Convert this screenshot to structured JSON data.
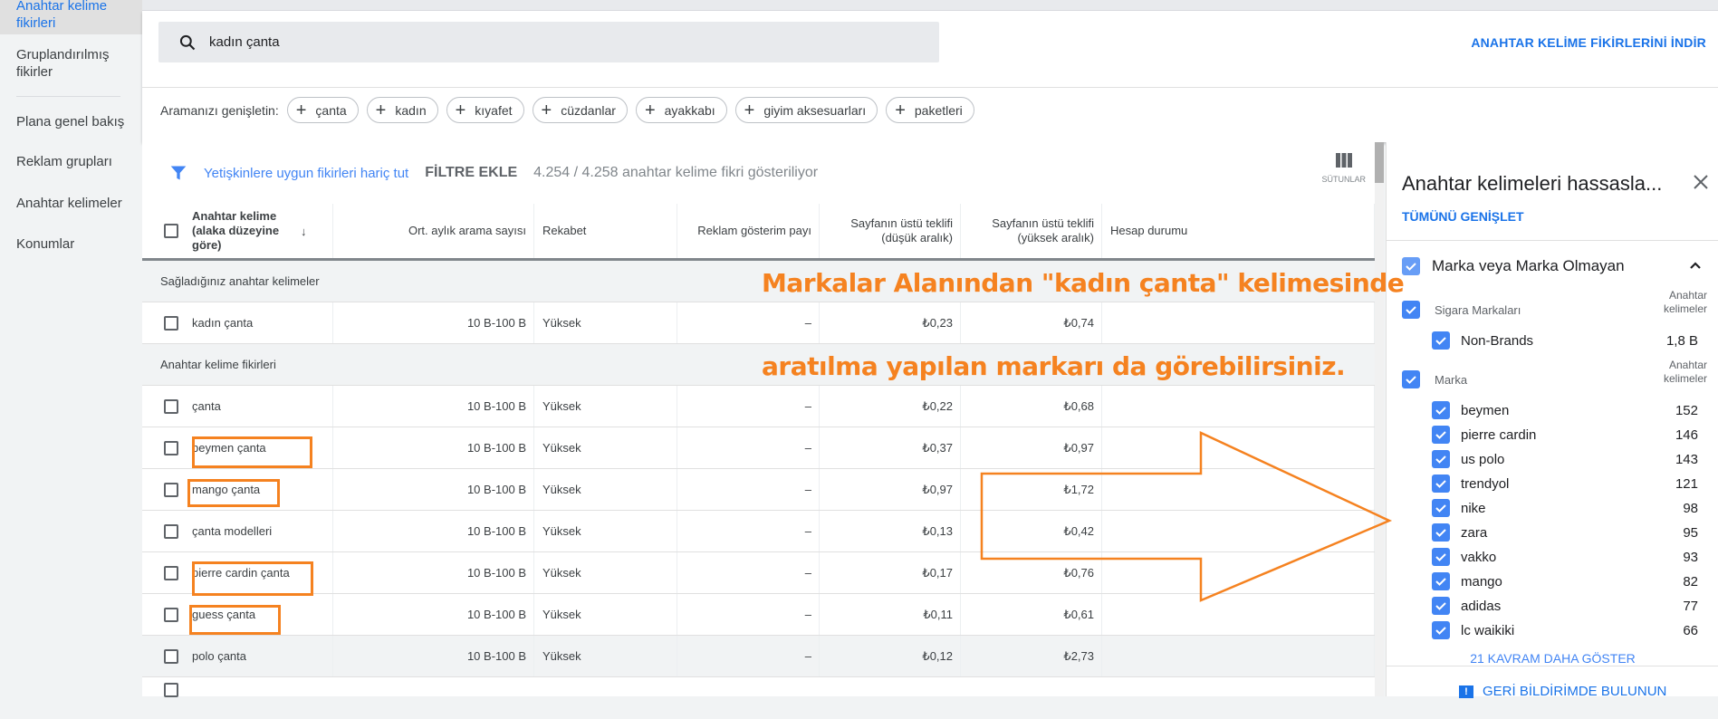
{
  "sidebar": {
    "items": [
      {
        "label": "Anahtar kelime fikirleri",
        "selected": true
      },
      {
        "label": "Gruplandırılmış fikirler"
      },
      {
        "label": "Plana genel bakış"
      },
      {
        "label": "Reklam grupları"
      },
      {
        "label": "Anahtar kelimeler"
      },
      {
        "label": "Konumlar"
      }
    ]
  },
  "search": {
    "icon": "search-icon",
    "value": "kadın çanta",
    "download_label": "ANAHTAR KELİME FİKİRLERİNİ İNDİR"
  },
  "expand": {
    "label": "Aramanızı genişletin:",
    "chips": [
      "çanta",
      "kadın",
      "kıyafet",
      "cüzdanlar",
      "ayakkabı",
      "giyim aksesuarları",
      "paketleri"
    ]
  },
  "filter": {
    "exclude_adult": "Yetişkinlere uygun fikirleri hariç tut",
    "add_filter": "FİLTRE EKLE",
    "count": "4.254 / 4.258 anahtar kelime fikri gösteriliyor",
    "columns_label": "SÜTUNLAR"
  },
  "table": {
    "headers": {
      "keyword": "Anahtar kelime (alaka düzeyine göre)",
      "avg": "Ort. aylık arama sayısı",
      "competition": "Rekabet",
      "impr": "Reklam gösterim payı",
      "low": "Sayfanın üstü teklifi (düşük aralık)",
      "high": "Sayfanın üstü teklifi (yüksek aralık)",
      "status": "Hesap durumu"
    },
    "section_provided": "Sağladığınız anahtar kelimeler",
    "provided": [
      {
        "keyword": "kadın çanta",
        "avg": "10 B-100 B",
        "competition": "Yüksek",
        "impr": "–",
        "low": "₺0,23",
        "high": "₺0,74"
      }
    ],
    "section_ideas": "Anahtar kelime fikirleri",
    "ideas": [
      {
        "keyword": "çanta",
        "avg": "10 B-100 B",
        "competition": "Yüksek",
        "impr": "–",
        "low": "₺0,22",
        "high": "₺0,68"
      },
      {
        "keyword": "beymen çanta",
        "avg": "10 B-100 B",
        "competition": "Yüksek",
        "impr": "–",
        "low": "₺0,37",
        "high": "₺0,97"
      },
      {
        "keyword": "mango çanta",
        "avg": "10 B-100 B",
        "competition": "Yüksek",
        "impr": "–",
        "low": "₺0,97",
        "high": "₺1,72"
      },
      {
        "keyword": "çanta modelleri",
        "avg": "10 B-100 B",
        "competition": "Yüksek",
        "impr": "–",
        "low": "₺0,13",
        "high": "₺0,42"
      },
      {
        "keyword": "pierre cardin çanta",
        "avg": "10 B-100 B",
        "competition": "Yüksek",
        "impr": "–",
        "low": "₺0,17",
        "high": "₺0,76"
      },
      {
        "keyword": "guess çanta",
        "avg": "10 B-100 B",
        "competition": "Yüksek",
        "impr": "–",
        "low": "₺0,11",
        "high": "₺0,61"
      },
      {
        "keyword": "polo çanta",
        "avg": "10 B-100 B",
        "competition": "Yüksek",
        "impr": "–",
        "low": "₺0,12",
        "high": "₺2,73"
      }
    ]
  },
  "panel": {
    "title": "Anahtar kelimeleri hassasla...",
    "expand_all": "TÜMÜNÜ GENİŞLET",
    "group": "Marka veya Marka Olmayan",
    "col_label": "Anahtar kelimeler",
    "sub1": {
      "label": "Sigara Markaları",
      "items": [
        {
          "name": "Non-Brands",
          "count": "1,8 B"
        }
      ]
    },
    "sub2": {
      "label": "Marka",
      "items": [
        {
          "name": "beymen",
          "count": "152"
        },
        {
          "name": "pierre cardin",
          "count": "146"
        },
        {
          "name": "us polo",
          "count": "143"
        },
        {
          "name": "trendyol",
          "count": "121"
        },
        {
          "name": "nike",
          "count": "98"
        },
        {
          "name": "zara",
          "count": "95"
        },
        {
          "name": "vakko",
          "count": "93"
        },
        {
          "name": "mango",
          "count": "82"
        },
        {
          "name": "adidas",
          "count": "77"
        },
        {
          "name": "lc waikiki",
          "count": "66"
        }
      ]
    },
    "show_more": "21 KAVRAM DAHA GÖSTER",
    "feedback": "GERİ BİLDİRİMDE BULUNUN"
  },
  "annotation": {
    "line1": "Markalar Alanından \"kadın çanta\" kelimesinde",
    "line2": "aratılma yapılan markarı da görebilirsiniz.",
    "color": "#f58220"
  },
  "colors": {
    "accent": "#1a73e8",
    "checkbox": "#4285f4"
  }
}
